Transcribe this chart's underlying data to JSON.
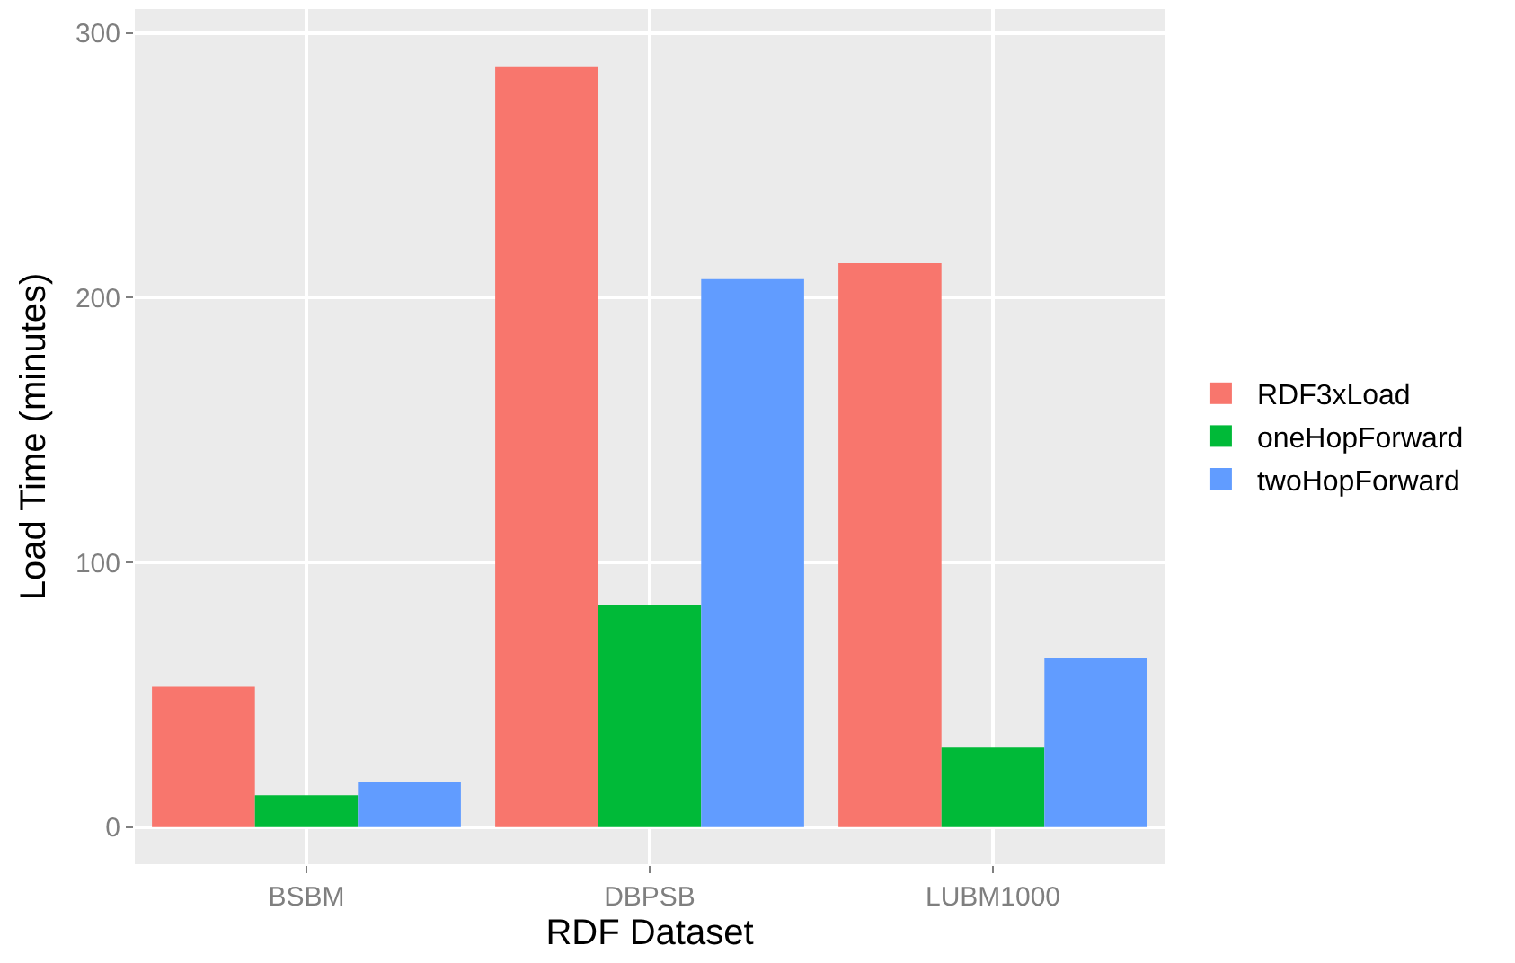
{
  "chart_data": {
    "type": "bar",
    "xlabel": "RDF Dataset",
    "ylabel": "Load Time (minutes)",
    "categories": [
      "BSBM",
      "DBPSB",
      "LUBM1000"
    ],
    "series": [
      {
        "name": "RDF3xLoad",
        "color": "#f8766d",
        "values": [
          53,
          287,
          213
        ]
      },
      {
        "name": "oneHopForward",
        "color": "#00ba38",
        "values": [
          12,
          84,
          30
        ]
      },
      {
        "name": "twoHopForward",
        "color": "#619cff",
        "values": [
          17,
          207,
          64
        ]
      }
    ],
    "ylim": [
      -14,
      309
    ],
    "yticks": [
      0,
      100,
      200,
      300
    ],
    "grid": true,
    "legend": "right"
  }
}
